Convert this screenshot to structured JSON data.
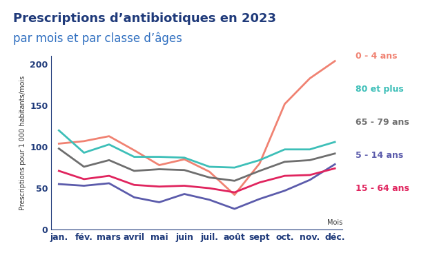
{
  "chart_data": {
    "type": "line",
    "title": "Prescriptions d’antibiotiques en 2023",
    "subtitle": "par mois et par classe d’âges",
    "y_label": "Prescriptions pour 1 000 habitants/mois",
    "x_label": "Mois",
    "categories": [
      "jan.",
      "fév.",
      "mars",
      "avril",
      "mai",
      "juin",
      "juil.",
      "août",
      "sept",
      "oct.",
      "nov.",
      "déc."
    ],
    "ylim": [
      0,
      210
    ],
    "yticks": [
      0,
      50,
      100,
      150,
      200
    ],
    "grid": false,
    "series": [
      {
        "name": "0 - 4 ans",
        "color": "#f08272",
        "values": [
          104,
          107,
          113,
          96,
          78,
          85,
          70,
          42,
          80,
          152,
          183,
          204
        ]
      },
      {
        "name": "80 et plus",
        "color": "#3dbfb8",
        "values": [
          120,
          93,
          103,
          88,
          88,
          87,
          76,
          75,
          84,
          97,
          97,
          106
        ]
      },
      {
        "name": "65 - 79 ans",
        "color": "#6e6e6e",
        "values": [
          98,
          76,
          84,
          71,
          73,
          72,
          63,
          59,
          71,
          82,
          84,
          92
        ]
      },
      {
        "name": "5 - 14 ans",
        "color": "#5b5bab",
        "values": [
          55,
          53,
          56,
          39,
          33,
          43,
          36,
          25,
          37,
          47,
          60,
          79
        ]
      },
      {
        "name": "15 - 64 ans",
        "color": "#e0245e",
        "values": [
          71,
          61,
          65,
          54,
          52,
          53,
          50,
          45,
          57,
          65,
          66,
          74
        ]
      }
    ]
  }
}
